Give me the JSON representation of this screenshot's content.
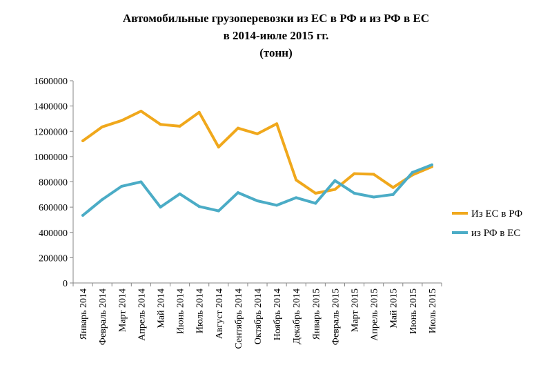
{
  "chart_data": {
    "type": "line",
    "title": [
      "Автомобильные грузоперевозки из ЕС в РФ и из РФ в ЕС",
      "в 2014-июле 2015 гг.",
      "(тонн)"
    ],
    "xlabel": "",
    "ylabel": "",
    "ylim": [
      0,
      1600000
    ],
    "yticks": [
      0,
      200000,
      400000,
      600000,
      800000,
      1000000,
      1200000,
      1400000,
      1600000
    ],
    "ytick_labels": [
      "0",
      "200000",
      "400000",
      "600000",
      "800000",
      "1000000",
      "1200000",
      "1400000",
      "1600000"
    ],
    "categories": [
      "Январь 2014",
      "Февраль 2014",
      "Март 2014",
      "Апрель 2014",
      "Май 2014",
      "Июнь 2014",
      "Июль 2014",
      "Август 2014",
      "Сентябрь 2014",
      "Октябрь 2014",
      "Ноябрь 2014",
      "Декабрь 2014",
      "Январь 2015",
      "Февраль 2015",
      "Март 2015",
      "Апрель 2015",
      "Май 2015",
      "Июнь 2015",
      "Июль 2015"
    ],
    "series": [
      {
        "name": "Из ЕС в РФ",
        "color": "#F0A81C",
        "values": [
          1125000,
          1235000,
          1285000,
          1360000,
          1255000,
          1240000,
          1350000,
          1075000,
          1225000,
          1180000,
          1260000,
          815000,
          710000,
          740000,
          865000,
          860000,
          755000,
          855000,
          920000
        ]
      },
      {
        "name": "из РФ в ЕС",
        "color": "#4BACC6",
        "values": [
          535000,
          660000,
          765000,
          800000,
          600000,
          705000,
          605000,
          570000,
          715000,
          650000,
          615000,
          675000,
          630000,
          810000,
          710000,
          680000,
          700000,
          875000,
          935000
        ]
      }
    ],
    "grid": false,
    "legend_position": "right"
  }
}
